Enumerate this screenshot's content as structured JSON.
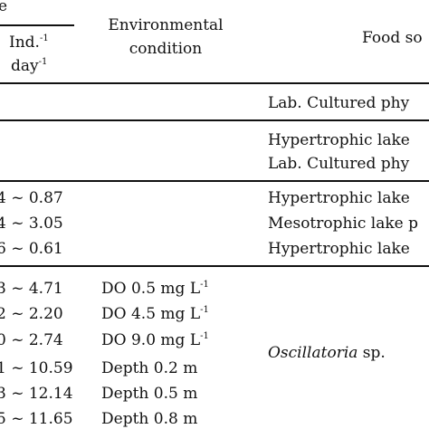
{
  "header": {
    "rate_fragment": "e",
    "unit_line1": "Ind.",
    "unit_line1_sup": "-1",
    "unit_line2": "day",
    "unit_line2_sup": "-1",
    "env_line1": "Environmental",
    "env_line2": "condition",
    "food_fragment": "Food so"
  },
  "rows": [
    {
      "rate": "",
      "env": "",
      "env_sup": "",
      "food": "Lab. Cultured phy",
      "food_italic": false
    },
    {
      "rate": "",
      "env": "",
      "env_sup": "",
      "food": "Hypertrophic lake",
      "food_italic": false
    },
    {
      "rate": "",
      "env": "",
      "env_sup": "",
      "food": "Lab. Cultured phy",
      "food_italic": false
    },
    {
      "rate": "4 ~ 0.87",
      "env": "",
      "env_sup": "",
      "food": "Hypertrophic lake",
      "food_italic": false
    },
    {
      "rate": "4 ~ 3.05",
      "env": "",
      "env_sup": "",
      "food": "Mesotrophic lake p",
      "food_italic": false
    },
    {
      "rate": "6 ~ 0.61",
      "env": "",
      "env_sup": "",
      "food": "Hypertrophic lake",
      "food_italic": false
    },
    {
      "rate": "3 ~ 4.71",
      "env": "DO 0.5 mg L",
      "env_sup": "-1",
      "food": "",
      "food_italic": false
    },
    {
      "rate": "2 ~ 2.20",
      "env": "DO 4.5 mg L",
      "env_sup": "-1",
      "food": "",
      "food_italic": false
    },
    {
      "rate": "0 ~ 2.74",
      "env": "DO 9.0 mg L",
      "env_sup": "-1",
      "food": "",
      "food_italic": false
    },
    {
      "rate": "1 ~ 10.59",
      "env": "Depth 0.2 m",
      "env_sup": "",
      "food": "",
      "food_italic": false
    },
    {
      "rate": "3 ~ 12.14",
      "env": "Depth 0.5 m",
      "env_sup": "",
      "food": "",
      "food_italic": false
    },
    {
      "rate": "5 ~ 11.65",
      "env": "Depth 0.8 m",
      "env_sup": "",
      "food": "",
      "food_italic": false
    }
  ],
  "group_food": {
    "name": "Oscillatoria",
    "suffix": " sp."
  }
}
